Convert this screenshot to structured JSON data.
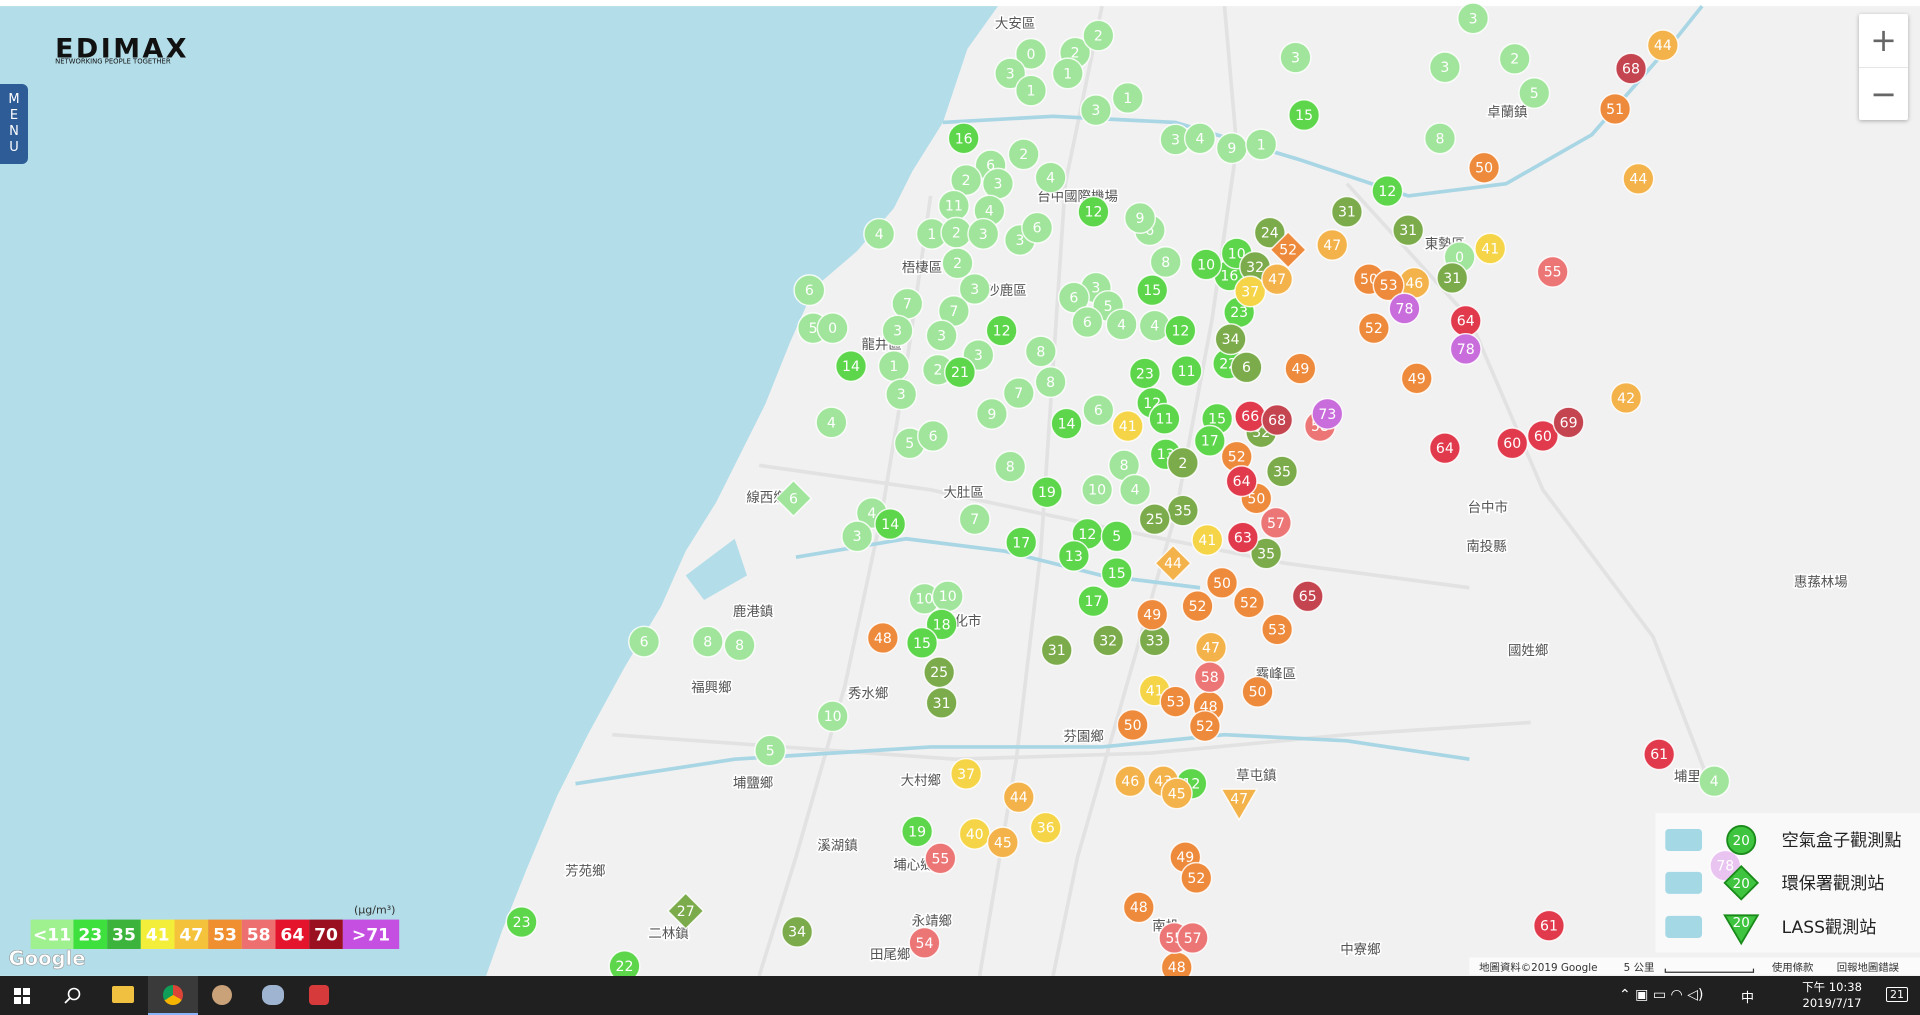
{
  "header": {
    "logo": "EDIMAX",
    "tagline": "NETWORKING PEOPLE TOGETHER",
    "menu": "MENU"
  },
  "zoom": {
    "in": "+",
    "out": "−"
  },
  "places": [
    "大安區",
    "台中國際機場",
    "梧棲區",
    "沙鹿區",
    "龍井區",
    "大肚區",
    "線西鄉",
    "鹿港鎮",
    "彰化市",
    "福興鄉",
    "秀水鄉",
    "埔鹽鄉",
    "大村鄉",
    "溪湖鎮",
    "埔心鄉",
    "芳苑鄉",
    "二林鎮",
    "永靖鄉",
    "田尾鄉",
    "芬園鄉",
    "草屯鎮",
    "霧峰區",
    "台中市",
    "南投縣",
    "國姓鄉",
    "惠蓀林場",
    "卓蘭鎮",
    "東勢區",
    "中寮鄉",
    "埔里",
    "南投"
  ],
  "markers": [
    {
      "shape": "circle",
      "color": "#a0e59b",
      "values": [
        0,
        2,
        2,
        3,
        1,
        1,
        3,
        1,
        2,
        6,
        2,
        3,
        4,
        11,
        4,
        1,
        2,
        3,
        3,
        6,
        4,
        2,
        6,
        5,
        0,
        7,
        3,
        7,
        3,
        3,
        3,
        1,
        2,
        3,
        4,
        5,
        6,
        7,
        9,
        8,
        8,
        3,
        6,
        5,
        6,
        4,
        4,
        6,
        8,
        9,
        3,
        4,
        9,
        1,
        3,
        3,
        2,
        5,
        8,
        3,
        0,
        8,
        7,
        4,
        3,
        6,
        8,
        8,
        10,
        5,
        10,
        10,
        6,
        8,
        10,
        4,
        4
      ]
    },
    {
      "shape": "diamond",
      "color": "#a0e59b",
      "values": [
        6
      ]
    },
    {
      "shape": "circle",
      "color": "#5dd64b",
      "values": [
        16,
        14,
        12,
        21,
        12,
        15,
        12,
        15,
        12,
        23,
        11,
        22,
        23,
        16,
        10,
        10,
        12,
        14,
        11,
        15,
        17,
        13,
        19,
        14,
        17,
        12,
        5,
        13,
        15,
        17,
        18,
        15,
        19,
        23,
        22,
        12
      ]
    },
    {
      "shape": "circle",
      "color": "#7bab4b",
      "values": [
        31,
        31,
        31,
        24,
        32,
        34,
        6,
        32,
        35,
        35,
        25,
        35,
        31,
        32,
        33,
        25,
        31,
        34,
        2
      ]
    },
    {
      "shape": "diamond",
      "color": "#7bab4b",
      "values": [
        27
      ]
    },
    {
      "shape": "circle",
      "color": "#f5d547",
      "values": [
        41,
        41,
        37,
        41,
        41,
        37,
        40,
        36
      ]
    },
    {
      "shape": "circle",
      "color": "#f3b24a",
      "values": [
        44,
        44,
        47,
        47,
        42,
        44,
        45,
        46,
        43,
        45,
        47,
        46
      ]
    },
    {
      "shape": "diamond",
      "color": "#f3b24a",
      "values": [
        44
      ]
    },
    {
      "shape": "triangle",
      "color": "#f3b24a",
      "values": [
        47
      ]
    },
    {
      "shape": "circle",
      "color": "#ee8a3c",
      "values": [
        51,
        50,
        50,
        53,
        52,
        49,
        49,
        52,
        50,
        52,
        50,
        52,
        53,
        49,
        48,
        48,
        53,
        50,
        52,
        50,
        49,
        52,
        48,
        48
      ]
    },
    {
      "shape": "diamond",
      "color": "#ee8a3c",
      "values": [
        52
      ]
    },
    {
      "shape": "circle",
      "color": "#ec7676",
      "values": [
        55,
        58,
        57,
        58,
        55,
        54,
        55,
        57
      ]
    },
    {
      "shape": "circle",
      "color": "#e03a4c",
      "values": [
        64,
        64,
        60,
        60,
        63,
        64,
        61,
        61,
        66
      ]
    },
    {
      "shape": "circle",
      "color": "#c4444f",
      "values": [
        68,
        69,
        65,
        68
      ]
    },
    {
      "shape": "circle",
      "color": "#c86ddb",
      "values": [
        78,
        78,
        73,
        78
      ]
    }
  ],
  "legend": {
    "unit": "(μg/m³)",
    "levels": [
      {
        "label": "<11",
        "color": "#9ff08f"
      },
      {
        "label": "23",
        "color": "#3ee03e"
      },
      {
        "label": "35",
        "color": "#3cb43c"
      },
      {
        "label": "41",
        "color": "#f3ee3a"
      },
      {
        "label": "47",
        "color": "#f5c23c"
      },
      {
        "label": "53",
        "color": "#ef8f2f"
      },
      {
        "label": "58",
        "color": "#ee6f6f"
      },
      {
        "label": "64",
        "color": "#e3142c"
      },
      {
        "label": "70",
        "color": "#9a1020"
      },
      {
        "label": ">71",
        "color": "#c44fe0"
      }
    ]
  },
  "station_legend": [
    {
      "label": "空氣盒子觀測點",
      "sample": "20"
    },
    {
      "label": "環保署觀測站",
      "sample": "20"
    },
    {
      "label": "LASS觀測站",
      "sample": "20"
    }
  ],
  "attribution": {
    "google": "Google",
    "data": "地圖資料©2019 Google",
    "scale": "5 公里",
    "terms": "使用條款",
    "report": "回報地圖錯誤"
  },
  "taskbar": {
    "ime": "中",
    "time": "下午 10:38",
    "date": "2019/7/17",
    "notifications": "21"
  }
}
